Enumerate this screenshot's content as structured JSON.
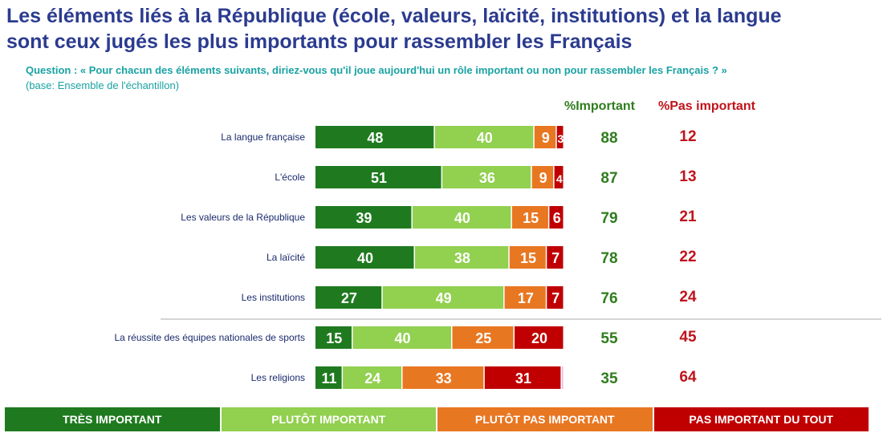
{
  "title_lines": [
    "Les éléments liés à la République (école, valeurs, laïcité, institutions) et la langue",
    "sont ceux jugés les plus importants pour rassembler les Français"
  ],
  "question": "Question : « Pour chacun des éléments suivants, diriez-vous qu'il joue aujourd'hui un rôle important ou non pour rassembler les Français ? »",
  "base": "(base: Ensemble de l'échantillon)",
  "columns": {
    "important": "%Important",
    "pas_important": "%Pas important"
  },
  "legend": [
    {
      "label": "TRÈS IMPORTANT",
      "color": "#1f7a1f"
    },
    {
      "label": "PLUTÔT IMPORTANT",
      "color": "#92d050"
    },
    {
      "label": "PLUTÔT PAS IMPORTANT",
      "color": "#e87722"
    },
    {
      "label": "PAS IMPORTANT DU TOUT",
      "color": "#c00000"
    }
  ],
  "colors": {
    "nsp": "#e6b8e6",
    "important_text": "#2f7d1e",
    "pas_important_text": "#c0131b"
  },
  "chart_data": {
    "type": "bar",
    "orientation": "horizontal-stacked",
    "categories": [
      "La langue française",
      "L'école",
      "Les valeurs de la République",
      "La laïcité",
      "Les institutions",
      "La réussite des équipes nationales de sports",
      "Les religions"
    ],
    "series": [
      {
        "name": "TRÈS IMPORTANT",
        "values": [
          48,
          51,
          39,
          40,
          27,
          15,
          11
        ]
      },
      {
        "name": "PLUTÔT IMPORTANT",
        "values": [
          40,
          36,
          40,
          38,
          49,
          40,
          24
        ]
      },
      {
        "name": "PLUTÔT PAS IMPORTANT",
        "values": [
          9,
          9,
          15,
          15,
          17,
          25,
          33
        ]
      },
      {
        "name": "PAS IMPORTANT DU TOUT",
        "values": [
          3,
          4,
          6,
          7,
          7,
          20,
          31
        ]
      },
      {
        "name": "",
        "values": [
          0,
          0,
          0,
          0,
          0,
          0,
          1
        ]
      }
    ],
    "important": [
      88,
      87,
      79,
      78,
      76,
      55,
      35
    ],
    "pas_important": [
      12,
      13,
      21,
      22,
      24,
      45,
      64
    ],
    "xlim": [
      0,
      100
    ]
  }
}
